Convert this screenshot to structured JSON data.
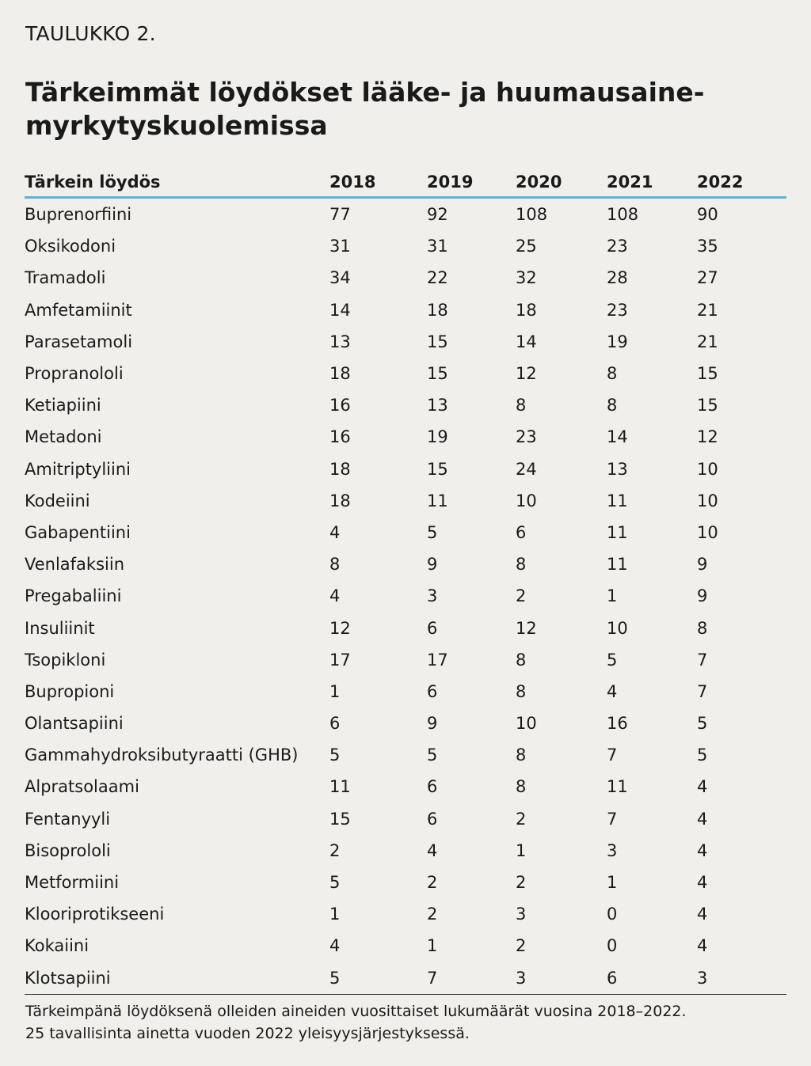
{
  "label": "TAULUKKO 2.",
  "title": "Tärkeimmät löydökset lääke- ja huumausaine-myrkytyskuolemissa",
  "table": {
    "headers": [
      "Tärkein löydös",
      "2018",
      "2019",
      "2020",
      "2021",
      "2022"
    ],
    "rows": [
      [
        "Buprenorfiini",
        "77",
        "92",
        "108",
        "108",
        "90"
      ],
      [
        "Oksikodoni",
        "31",
        "31",
        "25",
        "23",
        "35"
      ],
      [
        "Tramadoli",
        "34",
        "22",
        "32",
        "28",
        "27"
      ],
      [
        "Amfetamiinit",
        "14",
        "18",
        "18",
        "23",
        "21"
      ],
      [
        "Parasetamoli",
        "13",
        "15",
        "14",
        "19",
        "21"
      ],
      [
        "Propranololi",
        "18",
        "15",
        "12",
        "8",
        "15"
      ],
      [
        "Ketiapiini",
        "16",
        "13",
        "8",
        "8",
        "15"
      ],
      [
        "Metadoni",
        "16",
        "19",
        "23",
        "14",
        "12"
      ],
      [
        "Amitriptyliini",
        "18",
        "15",
        "24",
        "13",
        "10"
      ],
      [
        "Kodeiini",
        "18",
        "11",
        "10",
        "11",
        "10"
      ],
      [
        "Gabapentiini",
        "4",
        "5",
        "6",
        "11",
        "10"
      ],
      [
        "Venlafaksiin",
        "8",
        "9",
        "8",
        "11",
        "9"
      ],
      [
        "Pregabaliini",
        "4",
        "3",
        "2",
        "1",
        "9"
      ],
      [
        "Insuliinit",
        "12",
        "6",
        "12",
        "10",
        "8"
      ],
      [
        "Tsopikloni",
        "17",
        "17",
        "8",
        "5",
        "7"
      ],
      [
        "Bupropioni",
        "1",
        "6",
        "8",
        "4",
        "7"
      ],
      [
        "Olantsapiini",
        "6",
        "9",
        "10",
        "16",
        "5"
      ],
      [
        "Gammahydroksibutyraatti (GHB)",
        "5",
        "5",
        "8",
        "7",
        "5"
      ],
      [
        "Alpratsolaami",
        "11",
        "6",
        "8",
        "11",
        "4"
      ],
      [
        "Fentanyyli",
        "15",
        "6",
        "2",
        "7",
        "4"
      ],
      [
        "Bisoprololi",
        "2",
        "4",
        "1",
        "3",
        "4"
      ],
      [
        "Metformiini",
        "5",
        "2",
        "2",
        "1",
        "4"
      ],
      [
        "Klooriprotikseeni",
        "1",
        "2",
        "3",
        "0",
        "4"
      ],
      [
        "Kokaiini",
        "4",
        "1",
        "2",
        "0",
        "4"
      ],
      [
        "Klotsapiini",
        "5",
        "7",
        "3",
        "6",
        "3"
      ]
    ]
  },
  "footnote": {
    "line1": "Tärkeimpänä löydöksenä olleiden aineiden vuosittaiset lukumäärät vuosina 2018–2022.",
    "line2": "25 tavallisinta ainetta vuoden 2022 yleisyysjärjestyksessä."
  },
  "colors": {
    "background": "#f0efeb",
    "header_rule": "#5bb3d9",
    "text": "#1a1a1a"
  }
}
